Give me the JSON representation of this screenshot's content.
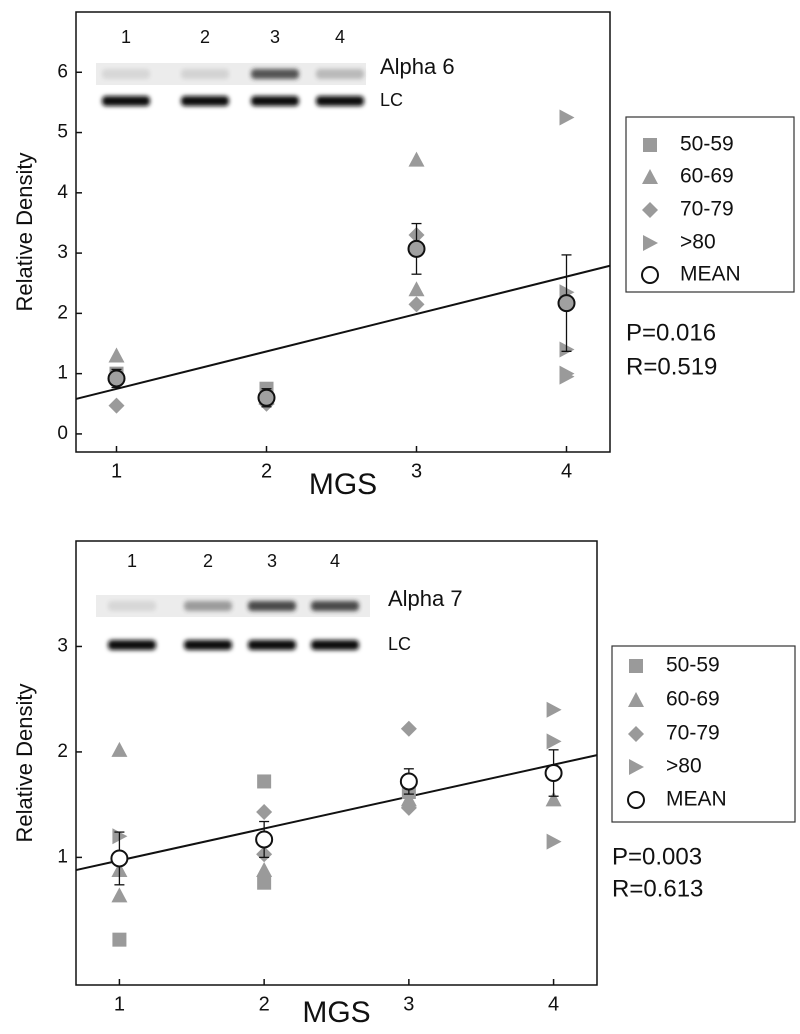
{
  "chart_data": [
    {
      "type": "scatter",
      "xlabel": "MGS",
      "ylabel": "Relative Density",
      "xlim": [
        0.73,
        4.29
      ],
      "xticks": [
        1,
        2,
        3,
        4
      ],
      "ylim": [
        -0.3,
        7.0
      ],
      "yticks": [
        0,
        1,
        2,
        3,
        4,
        5,
        6
      ],
      "blot": {
        "lanes": [
          "1",
          "2",
          "3",
          "4"
        ],
        "label": "Alpha 6",
        "control": "LC"
      },
      "series": [
        {
          "name": "50-59",
          "marker": "square",
          "color": "#9a9a9a",
          "x": [
            1,
            2
          ],
          "values": [
            1.0,
            0.75
          ]
        },
        {
          "name": "60-69",
          "marker": "triangle",
          "color": "#9a9a9a",
          "x": [
            1,
            2,
            3,
            3
          ],
          "values": [
            1.3,
            0.6,
            4.55,
            2.4
          ]
        },
        {
          "name": "70-79",
          "marker": "diamond",
          "color": "#9a9a9a",
          "x": [
            1,
            2,
            3,
            3
          ],
          "values": [
            0.47,
            0.5,
            3.3,
            2.15
          ]
        },
        {
          "name": ">80",
          "marker": "right-triangle",
          "color": "#9a9a9a",
          "x": [
            4,
            4,
            4,
            4,
            4
          ],
          "values": [
            5.25,
            2.35,
            1.4,
            1.0,
            0.95
          ]
        },
        {
          "name": "MEAN",
          "marker": "circle",
          "color": "#a0a0a0",
          "x": [
            1,
            2,
            3,
            4
          ],
          "values": [
            0.92,
            0.6,
            3.07,
            2.17
          ],
          "errors": [
            0.15,
            0.15,
            0.42,
            0.8
          ]
        }
      ],
      "trend": {
        "x": [
          0.73,
          4.29
        ],
        "values": [
          0.58,
          2.79
        ]
      },
      "annotations": [
        "P=0.016",
        "R=0.519"
      ]
    },
    {
      "type": "scatter",
      "xlabel": "MGS",
      "ylabel": "Relative Density",
      "xlim": [
        0.7,
        4.3
      ],
      "xticks": [
        1,
        2,
        3,
        4
      ],
      "ylim": [
        -0.21,
        4.0
      ],
      "yticks": [
        1,
        2,
        3
      ],
      "blot": {
        "lanes": [
          "1",
          "2",
          "3",
          "4"
        ],
        "label": "Alpha 7",
        "control": "LC"
      },
      "series": [
        {
          "name": "50-59",
          "marker": "square",
          "color": "#9a9a9a",
          "x": [
            1,
            2,
            2,
            3
          ],
          "values": [
            0.22,
            1.72,
            0.76,
            1.62
          ]
        },
        {
          "name": "60-69",
          "marker": "triangle",
          "color": "#9a9a9a",
          "x": [
            1,
            1,
            1,
            2,
            3,
            4
          ],
          "values": [
            2.02,
            0.64,
            0.88,
            0.88,
            1.55,
            1.55
          ]
        },
        {
          "name": "70-79",
          "marker": "diamond",
          "color": "#9a9a9a",
          "x": [
            2,
            2,
            3,
            3
          ],
          "values": [
            1.43,
            1.03,
            2.22,
            1.47
          ]
        },
        {
          "name": ">80",
          "marker": "right-triangle",
          "color": "#9a9a9a",
          "x": [
            1,
            4,
            4,
            4
          ],
          "values": [
            1.2,
            2.4,
            2.1,
            1.15
          ]
        },
        {
          "name": "MEAN",
          "marker": "circle",
          "color": "#ffffff",
          "x": [
            1,
            2,
            3,
            4
          ],
          "values": [
            0.99,
            1.17,
            1.72,
            1.8
          ],
          "errors": [
            0.25,
            0.17,
            0.12,
            0.22
          ]
        }
      ],
      "trend": {
        "x": [
          0.7,
          4.3
        ],
        "values": [
          0.88,
          1.97
        ]
      },
      "annotations": [
        "P=0.003",
        "R=0.613"
      ]
    }
  ]
}
